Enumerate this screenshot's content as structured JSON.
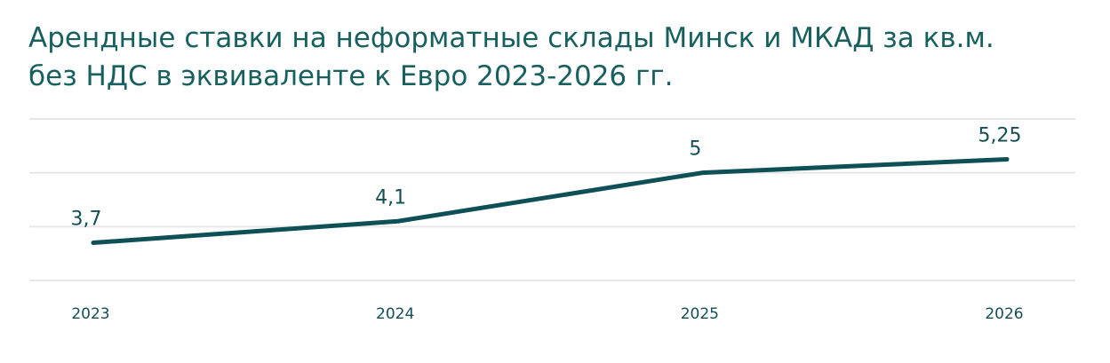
{
  "chart_data": {
    "type": "line",
    "title": [
      "Арендные ставки на неформатные склады Минск и МКАД за кв.м.",
      "без НДС в эквиваленте к Евро 2023-2026 гг."
    ],
    "categories": [
      "2023",
      "2024",
      "2025",
      "2026"
    ],
    "values": [
      3.7,
      4.1,
      5,
      5.25
    ],
    "value_labels": [
      "3,7",
      "4,1",
      "5",
      "5,25"
    ],
    "color": "#0e5055",
    "ylim": [
      3,
      6
    ],
    "yticks": [
      3,
      4,
      5,
      6
    ],
    "grid": true
  }
}
